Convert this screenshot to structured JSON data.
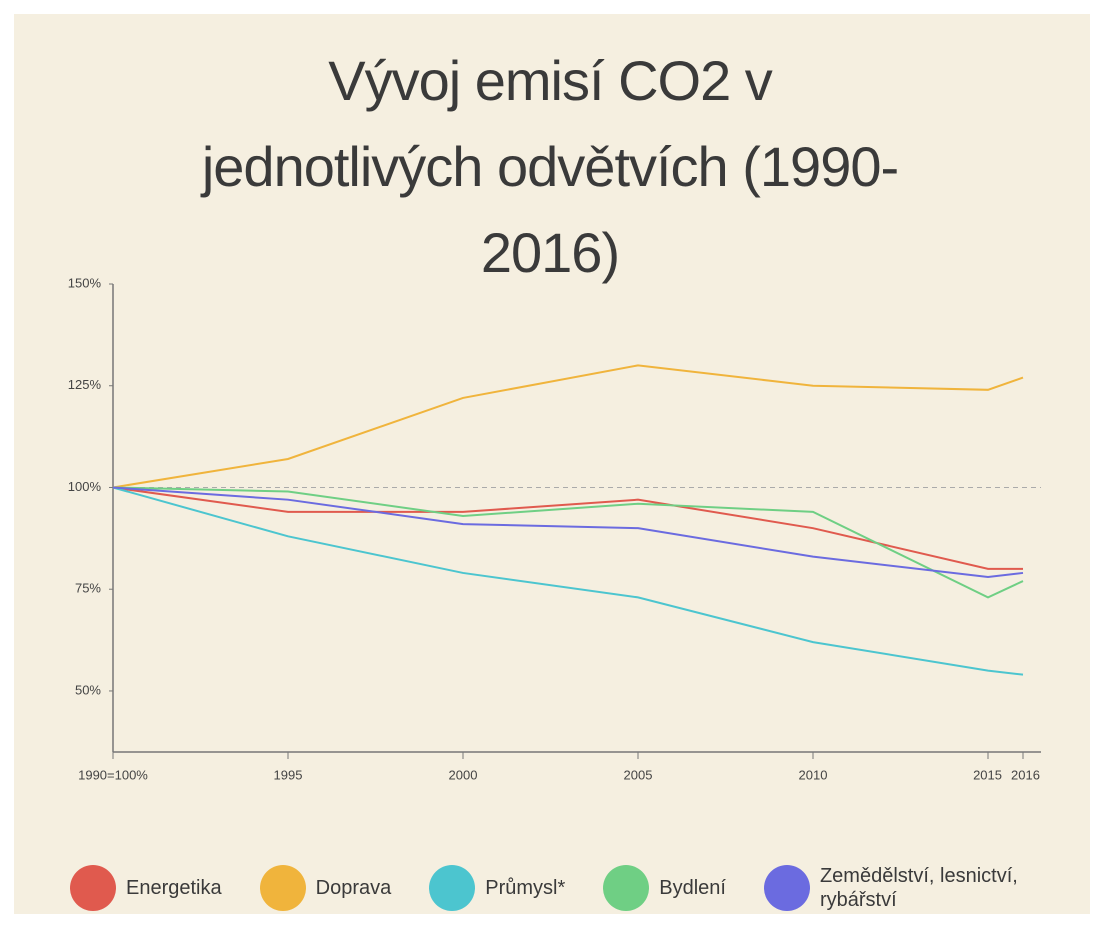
{
  "chart_data": {
    "type": "line",
    "title": "Vývoj emisí CO2 v jednotlivých odvětvích (1990-2016)",
    "x": [
      1990,
      1995,
      2000,
      2005,
      2010,
      2015,
      2016
    ],
    "xlim": [
      1990,
      2016
    ],
    "xticks": [
      {
        "value": 1990,
        "label": "1990=100%"
      },
      1995,
      2000,
      2005,
      2010,
      2015,
      2016
    ],
    "ylim": [
      35,
      150
    ],
    "yticks": [
      {
        "value": 50,
        "label": "50%"
      },
      {
        "value": 75,
        "label": "75%"
      },
      {
        "value": 100,
        "label": "100%"
      },
      {
        "value": 125,
        "label": "125%"
      },
      {
        "value": 150,
        "label": "150%"
      }
    ],
    "baseline": 100,
    "series": [
      {
        "name": "Energetika",
        "color": "#e05a4e",
        "values": [
          100,
          94,
          94,
          97,
          90,
          80,
          80
        ]
      },
      {
        "name": "Doprava",
        "color": "#f0b43c",
        "values": [
          100,
          107,
          122,
          130,
          125,
          124,
          127
        ]
      },
      {
        "name": "Průmysl*",
        "color": "#4cc5cf",
        "values": [
          100,
          88,
          79,
          73,
          62,
          55,
          54
        ]
      },
      {
        "name": "Bydlení",
        "color": "#6fcf84",
        "values": [
          100,
          99,
          93,
          96,
          94,
          73,
          77
        ]
      },
      {
        "name": "Zemědělství, lesnictví, rybářství",
        "color": "#6b6be0",
        "values": [
          100,
          97,
          91,
          90,
          83,
          78,
          79
        ]
      }
    ]
  }
}
